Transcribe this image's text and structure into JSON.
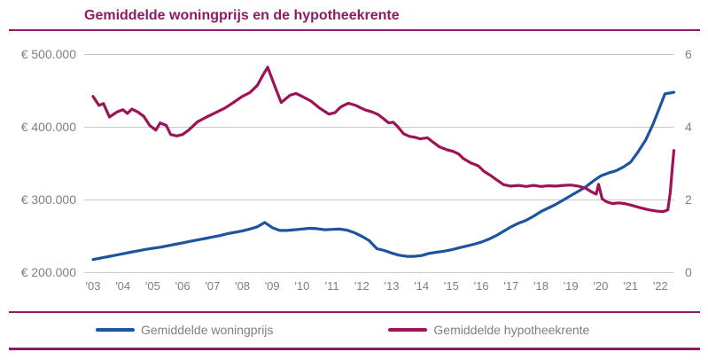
{
  "title": "Gemiddelde woningprijs en de hypotheekrente",
  "colors": {
    "title": "#8e1a62",
    "divider": "#8e1a62",
    "price_line": "#1d54a0",
    "rate_line": "#9e1358",
    "axis_text": "#7f7f7f",
    "gridline": "#c9c9c9",
    "legend_text": "#7f7f7f"
  },
  "legend": [
    {
      "label": "Gemiddelde woningprijs",
      "color_key": "price_line"
    },
    {
      "label": "Gemiddelde hypotheekrente",
      "color_key": "rate_line"
    }
  ],
  "chart_data": {
    "type": "line",
    "title": "Gemiddelde woningprijs en de hypotheekrente",
    "grid": true,
    "legend_position": "bottom",
    "x_tick_labels": [
      "'03",
      "'04",
      "'05",
      "'06",
      "'07",
      "'08",
      "'09",
      "'10",
      "'11",
      "'12",
      "'13",
      "'14",
      "'15",
      "'16",
      "'17",
      "'18",
      "'19",
      "'20",
      "'21",
      "'22"
    ],
    "x_range": [
      2003,
      2022.75
    ],
    "y_left": {
      "tick_labels": [
        "€ 500.000",
        "€ 400.000",
        "€ 300.000",
        "€ 200.000"
      ],
      "tick_values": [
        500000,
        400000,
        300000,
        200000
      ],
      "range": [
        200000,
        500000
      ]
    },
    "y_right": {
      "tick_labels": [
        "6",
        "4",
        "2",
        "0"
      ],
      "tick_values": [
        6,
        4,
        2,
        0
      ],
      "range": [
        0,
        6
      ]
    },
    "series": [
      {
        "id": "woningprijs",
        "name": "Gemiddelde woningprijs",
        "axis": "left",
        "color_key": "price_line",
        "unit": "EUR",
        "points": [
          [
            2003.0,
            218000
          ],
          [
            2003.25,
            220000
          ],
          [
            2003.5,
            222000
          ],
          [
            2003.75,
            224000
          ],
          [
            2004.0,
            226000
          ],
          [
            2004.25,
            228000
          ],
          [
            2004.5,
            230000
          ],
          [
            2004.75,
            232000
          ],
          [
            2005.0,
            233500
          ],
          [
            2005.25,
            235000
          ],
          [
            2005.5,
            237000
          ],
          [
            2005.75,
            239000
          ],
          [
            2006.0,
            241000
          ],
          [
            2006.25,
            243000
          ],
          [
            2006.5,
            245000
          ],
          [
            2006.75,
            247000
          ],
          [
            2007.0,
            249000
          ],
          [
            2007.25,
            251000
          ],
          [
            2007.5,
            253500
          ],
          [
            2007.75,
            255500
          ],
          [
            2008.0,
            257500
          ],
          [
            2008.25,
            260000
          ],
          [
            2008.5,
            263000
          ],
          [
            2008.75,
            269000
          ],
          [
            2009.0,
            262000
          ],
          [
            2009.25,
            258000
          ],
          [
            2009.5,
            258000
          ],
          [
            2009.75,
            259000
          ],
          [
            2010.0,
            260000
          ],
          [
            2010.25,
            261000
          ],
          [
            2010.5,
            260500
          ],
          [
            2010.75,
            259000
          ],
          [
            2011.0,
            259500
          ],
          [
            2011.25,
            260000
          ],
          [
            2011.5,
            258500
          ],
          [
            2011.75,
            255000
          ],
          [
            2012.0,
            250000
          ],
          [
            2012.25,
            244000
          ],
          [
            2012.5,
            233000
          ],
          [
            2012.75,
            230500
          ],
          [
            2013.0,
            227000
          ],
          [
            2013.25,
            224000
          ],
          [
            2013.5,
            222500
          ],
          [
            2013.75,
            222500
          ],
          [
            2014.0,
            223500
          ],
          [
            2014.25,
            226500
          ],
          [
            2014.5,
            228000
          ],
          [
            2014.75,
            229500
          ],
          [
            2015.0,
            231500
          ],
          [
            2015.25,
            234000
          ],
          [
            2015.5,
            236500
          ],
          [
            2015.75,
            239000
          ],
          [
            2016.0,
            242000
          ],
          [
            2016.25,
            246000
          ],
          [
            2016.5,
            251000
          ],
          [
            2016.75,
            257000
          ],
          [
            2017.0,
            263000
          ],
          [
            2017.25,
            268000
          ],
          [
            2017.5,
            272000
          ],
          [
            2017.75,
            277500
          ],
          [
            2018.0,
            284000
          ],
          [
            2018.25,
            289000
          ],
          [
            2018.5,
            294000
          ],
          [
            2018.75,
            300000
          ],
          [
            2019.0,
            306000
          ],
          [
            2019.25,
            312000
          ],
          [
            2019.5,
            318000
          ],
          [
            2019.75,
            326000
          ],
          [
            2020.0,
            333000
          ],
          [
            2020.25,
            337000
          ],
          [
            2020.5,
            340000
          ],
          [
            2020.75,
            345000
          ],
          [
            2021.0,
            352000
          ],
          [
            2021.25,
            366000
          ],
          [
            2021.5,
            382000
          ],
          [
            2021.75,
            404000
          ],
          [
            2022.0,
            430000
          ],
          [
            2022.15,
            446000
          ],
          [
            2022.3,
            447000
          ],
          [
            2022.45,
            448000
          ]
        ]
      },
      {
        "id": "hypotheekrente",
        "name": "Gemiddelde hypotheekrente",
        "axis": "right",
        "color_key": "rate_line",
        "unit": "%",
        "points": [
          [
            2003.0,
            4.85
          ],
          [
            2003.2,
            4.6
          ],
          [
            2003.35,
            4.65
          ],
          [
            2003.55,
            4.28
          ],
          [
            2003.8,
            4.42
          ],
          [
            2004.0,
            4.48
          ],
          [
            2004.15,
            4.38
          ],
          [
            2004.3,
            4.5
          ],
          [
            2004.5,
            4.42
          ],
          [
            2004.7,
            4.3
          ],
          [
            2004.9,
            4.05
          ],
          [
            2005.1,
            3.92
          ],
          [
            2005.25,
            4.12
          ],
          [
            2005.45,
            4.05
          ],
          [
            2005.6,
            3.8
          ],
          [
            2005.8,
            3.76
          ],
          [
            2006.0,
            3.8
          ],
          [
            2006.2,
            3.92
          ],
          [
            2006.5,
            4.15
          ],
          [
            2006.8,
            4.28
          ],
          [
            2007.1,
            4.4
          ],
          [
            2007.4,
            4.52
          ],
          [
            2007.7,
            4.68
          ],
          [
            2008.0,
            4.85
          ],
          [
            2008.25,
            4.95
          ],
          [
            2008.5,
            5.15
          ],
          [
            2008.7,
            5.45
          ],
          [
            2008.85,
            5.65
          ],
          [
            2009.1,
            5.1
          ],
          [
            2009.3,
            4.68
          ],
          [
            2009.6,
            4.88
          ],
          [
            2009.8,
            4.93
          ],
          [
            2010.0,
            4.85
          ],
          [
            2010.3,
            4.72
          ],
          [
            2010.6,
            4.52
          ],
          [
            2010.9,
            4.36
          ],
          [
            2011.1,
            4.4
          ],
          [
            2011.3,
            4.56
          ],
          [
            2011.55,
            4.66
          ],
          [
            2011.8,
            4.6
          ],
          [
            2012.1,
            4.48
          ],
          [
            2012.35,
            4.42
          ],
          [
            2012.55,
            4.35
          ],
          [
            2012.75,
            4.22
          ],
          [
            2012.9,
            4.12
          ],
          [
            2013.05,
            4.14
          ],
          [
            2013.2,
            4.02
          ],
          [
            2013.4,
            3.82
          ],
          [
            2013.6,
            3.75
          ],
          [
            2013.8,
            3.72
          ],
          [
            2013.95,
            3.68
          ],
          [
            2014.2,
            3.71
          ],
          [
            2014.4,
            3.58
          ],
          [
            2014.6,
            3.46
          ],
          [
            2014.85,
            3.38
          ],
          [
            2015.05,
            3.34
          ],
          [
            2015.25,
            3.26
          ],
          [
            2015.4,
            3.14
          ],
          [
            2015.65,
            3.02
          ],
          [
            2015.9,
            2.94
          ],
          [
            2016.1,
            2.78
          ],
          [
            2016.3,
            2.68
          ],
          [
            2016.5,
            2.56
          ],
          [
            2016.75,
            2.42
          ],
          [
            2017.0,
            2.38
          ],
          [
            2017.25,
            2.4
          ],
          [
            2017.5,
            2.37
          ],
          [
            2017.75,
            2.4
          ],
          [
            2018.0,
            2.37
          ],
          [
            2018.25,
            2.39
          ],
          [
            2018.5,
            2.38
          ],
          [
            2018.75,
            2.4
          ],
          [
            2019.0,
            2.41
          ],
          [
            2019.25,
            2.38
          ],
          [
            2019.5,
            2.32
          ],
          [
            2019.7,
            2.22
          ],
          [
            2019.85,
            2.16
          ],
          [
            2019.93,
            2.43
          ],
          [
            2020.05,
            2.03
          ],
          [
            2020.2,
            1.95
          ],
          [
            2020.4,
            1.9
          ],
          [
            2020.6,
            1.92
          ],
          [
            2020.8,
            1.9
          ],
          [
            2021.0,
            1.86
          ],
          [
            2021.3,
            1.79
          ],
          [
            2021.6,
            1.73
          ],
          [
            2021.9,
            1.69
          ],
          [
            2022.1,
            1.68
          ],
          [
            2022.25,
            1.73
          ],
          [
            2022.33,
            2.2
          ],
          [
            2022.4,
            2.9
          ],
          [
            2022.45,
            3.36
          ]
        ]
      }
    ]
  }
}
